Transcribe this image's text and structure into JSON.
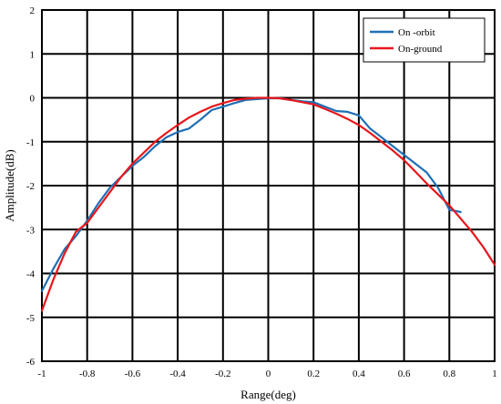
{
  "chart_data": {
    "type": "line",
    "title": "",
    "xlabel": "Range(deg)",
    "ylabel": "Amplitude(dB)",
    "xlim": [
      -1,
      1
    ],
    "ylim": [
      -6,
      2
    ],
    "x_ticks": [
      -1,
      -0.8,
      -0.6,
      -0.4,
      -0.2,
      0,
      0.2,
      0.4,
      0.6,
      0.8,
      1
    ],
    "x_tick_labels": [
      "-1",
      "-0.8",
      "-0.6",
      "-0.4",
      "-0.2",
      "0",
      "0.2",
      "0.4",
      "0.6",
      "0.8",
      "1"
    ],
    "y_ticks": [
      -6,
      -5,
      -4,
      -3,
      -2,
      -1,
      0,
      1,
      2
    ],
    "y_tick_labels": [
      "-6",
      "-5",
      "-4",
      "-3",
      "-2",
      "-1",
      "0",
      "1",
      "2"
    ],
    "grid": true,
    "legend_position": "top-right",
    "series": [
      {
        "name": "On -orbit",
        "color": "#1f6fb5",
        "x": [
          -1.0,
          -0.95,
          -0.9,
          -0.85,
          -0.8,
          -0.75,
          -0.7,
          -0.65,
          -0.6,
          -0.55,
          -0.5,
          -0.45,
          -0.4,
          -0.35,
          -0.3,
          -0.25,
          -0.2,
          -0.15,
          -0.1,
          -0.05,
          0.0,
          0.05,
          0.1,
          0.15,
          0.2,
          0.25,
          0.3,
          0.35,
          0.4,
          0.45,
          0.5,
          0.55,
          0.6,
          0.65,
          0.7,
          0.75,
          0.8,
          0.85
        ],
        "y": [
          -4.4,
          -3.9,
          -3.45,
          -3.15,
          -2.8,
          -2.4,
          -2.05,
          -1.8,
          -1.55,
          -1.35,
          -1.1,
          -0.9,
          -0.78,
          -0.7,
          -0.5,
          -0.28,
          -0.2,
          -0.12,
          -0.05,
          -0.03,
          -0.01,
          -0.01,
          -0.05,
          -0.08,
          -0.1,
          -0.2,
          -0.3,
          -0.32,
          -0.4,
          -0.7,
          -0.9,
          -1.1,
          -1.3,
          -1.5,
          -1.7,
          -2.05,
          -2.55,
          -2.6
        ]
      },
      {
        "name": "On-ground",
        "color": "#e8161b",
        "x": [
          -1.0,
          -0.95,
          -0.9,
          -0.85,
          -0.8,
          -0.75,
          -0.7,
          -0.65,
          -0.6,
          -0.55,
          -0.5,
          -0.45,
          -0.4,
          -0.35,
          -0.3,
          -0.25,
          -0.2,
          -0.15,
          -0.1,
          -0.05,
          0.0,
          0.05,
          0.1,
          0.15,
          0.2,
          0.25,
          0.3,
          0.35,
          0.4,
          0.45,
          0.5,
          0.55,
          0.6,
          0.65,
          0.7,
          0.75,
          0.8,
          0.85,
          0.9,
          0.95,
          1.0
        ],
        "y": [
          -4.85,
          -4.15,
          -3.55,
          -3.05,
          -2.85,
          -2.5,
          -2.15,
          -1.8,
          -1.5,
          -1.25,
          -1.0,
          -0.8,
          -0.62,
          -0.45,
          -0.32,
          -0.2,
          -0.12,
          -0.05,
          -0.02,
          0.0,
          0.0,
          -0.01,
          -0.05,
          -0.1,
          -0.15,
          -0.25,
          -0.36,
          -0.48,
          -0.62,
          -0.8,
          -1.0,
          -1.2,
          -1.42,
          -1.68,
          -1.95,
          -2.2,
          -2.45,
          -2.75,
          -3.05,
          -3.4,
          -3.8
        ]
      }
    ]
  }
}
